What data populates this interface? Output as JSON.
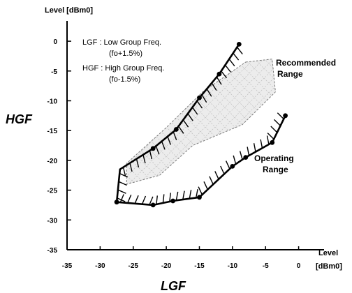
{
  "chart_data": {
    "type": "line",
    "xlim": [
      -35,
      3
    ],
    "ylim": [
      -35,
      2
    ],
    "x_ticks": [
      -35,
      -30,
      -25,
      -20,
      -15,
      -10,
      -5,
      0
    ],
    "x_tick_labels": [
      "-35",
      "-30",
      "-25",
      "-20",
      "-15",
      "-10",
      "-5",
      "0"
    ],
    "y_ticks": [
      0,
      -5,
      -10,
      -15,
      -20,
      -25,
      -30,
      -35
    ],
    "y_tick_labels": [
      "0",
      "-5",
      "-10",
      "-15",
      "-20",
      "-25",
      "-30",
      "-35"
    ],
    "y_unit_label": "Level [dBm0]",
    "x_unit_label_top": "Level",
    "x_unit_label_bottom": "[dBm0]",
    "xlabel": "LGF",
    "ylabel": "HGF",
    "legend_notes": [
      "LGF : Low Group Freq.",
      "(fo+1.5%)",
      "HGF : High Group Freq.",
      "(fo-1.5%)"
    ],
    "operating_range": {
      "label_line1": "Operating",
      "label_line2": "Range",
      "boundary": [
        [
          -9,
          -0.5
        ],
        [
          -12,
          -5.5
        ],
        [
          -15,
          -9.5
        ],
        [
          -18.5,
          -14.8
        ],
        [
          -22,
          -18
        ],
        [
          -27,
          -21.5
        ],
        [
          -27.5,
          -27
        ],
        [
          -22,
          -27.5
        ],
        [
          -19,
          -26.8
        ],
        [
          -15,
          -26.2
        ],
        [
          -10,
          -21
        ],
        [
          -8,
          -19.5
        ],
        [
          -4,
          -17
        ],
        [
          -2,
          -12.5
        ]
      ],
      "markers": [
        [
          -9,
          -0.5
        ],
        [
          -12,
          -5.5
        ],
        [
          -15,
          -9.5
        ],
        [
          -18.5,
          -14.8
        ],
        [
          -22,
          -18
        ],
        [
          -27.5,
          -27
        ],
        [
          -22,
          -27.5
        ],
        [
          -19,
          -26.8
        ],
        [
          -15,
          -26.2
        ],
        [
          -10,
          -21
        ],
        [
          -8,
          -19.5
        ],
        [
          -4,
          -17
        ],
        [
          -2,
          -12.5
        ]
      ]
    },
    "recommended_range": {
      "label_line1": "Recommended",
      "label_line2": "Range",
      "boundary": [
        [
          -8,
          -3.5
        ],
        [
          -4,
          -3
        ],
        [
          -3.5,
          -8.5
        ],
        [
          -8.5,
          -14
        ],
        [
          -16,
          -17.5
        ],
        [
          -21,
          -22.5
        ],
        [
          -26,
          -24
        ],
        [
          -26,
          -20.5
        ],
        [
          -20,
          -14.5
        ],
        [
          -14.5,
          -8.5
        ]
      ]
    },
    "colors": {
      "operating_line": "#000000",
      "recommended_outline": "#7a7a7a",
      "recommended_fill": "#e2e2e2"
    }
  }
}
